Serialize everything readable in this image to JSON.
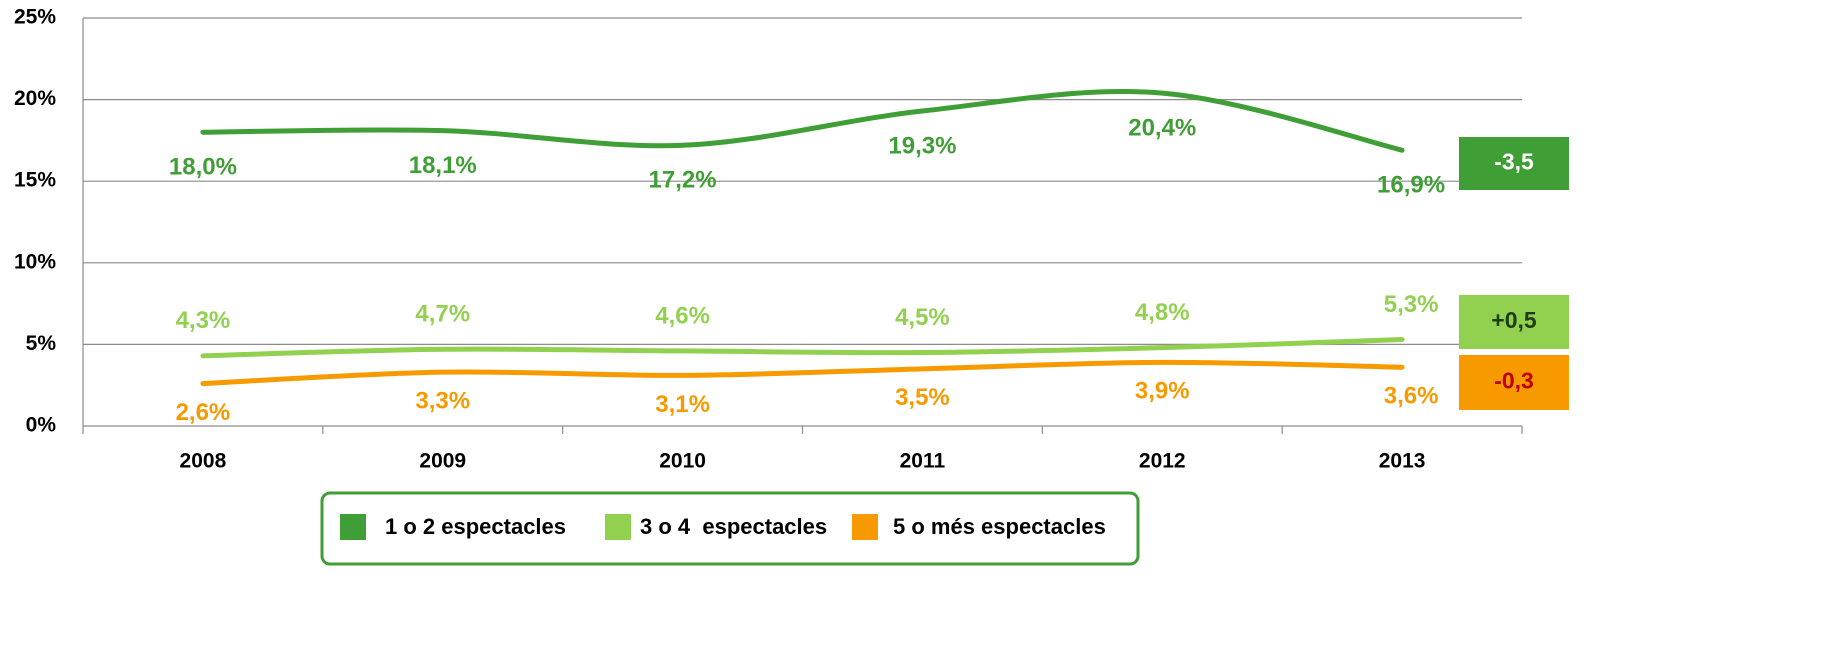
{
  "chart_data": {
    "type": "line",
    "categories": [
      "2008",
      "2009",
      "2010",
      "2011",
      "2012",
      "2013"
    ],
    "series": [
      {
        "name": "1 o 2 espectacles",
        "color": "#3f9e35",
        "values": [
          18.0,
          18.1,
          17.2,
          19.3,
          20.4,
          16.9
        ],
        "value_labels": [
          "18,0%",
          "18,1%",
          "17,2%",
          "19,3%",
          "20,4%",
          "16,9%"
        ]
      },
      {
        "name": "3 o 4  espectacles",
        "color": "#92d050",
        "values": [
          4.3,
          4.7,
          4.6,
          4.5,
          4.8,
          5.3
        ],
        "value_labels": [
          "4,3%",
          "4,7%",
          "4,6%",
          "4,5%",
          "4,8%",
          "5,3%"
        ]
      },
      {
        "name": "5 o més espectacles",
        "color": "#f79a00",
        "values": [
          2.6,
          3.3,
          3.1,
          3.5,
          3.9,
          3.6
        ],
        "value_labels": [
          "2,6%",
          "3,3%",
          "3,1%",
          "3,5%",
          "3,9%",
          "3,6%"
        ]
      }
    ],
    "ylim": [
      0,
      25
    ],
    "yticks": [
      {
        "value": 0,
        "label": "0%"
      },
      {
        "value": 5,
        "label": "5%"
      },
      {
        "value": 10,
        "label": "10%"
      },
      {
        "value": 15,
        "label": "15%"
      },
      {
        "value": 20,
        "label": "20%"
      },
      {
        "value": 25,
        "label": "25%"
      }
    ],
    "grid": true,
    "legend": "bottom",
    "annotations": [
      {
        "text": "-3,5",
        "color": "#3f9e35",
        "text_color": "#ffffff"
      },
      {
        "text": "+0,5",
        "color": "#92d050",
        "text_color": "#1e3d14"
      },
      {
        "text": "-0,3",
        "color": "#f79a00",
        "text_color": "#c00000"
      }
    ]
  }
}
